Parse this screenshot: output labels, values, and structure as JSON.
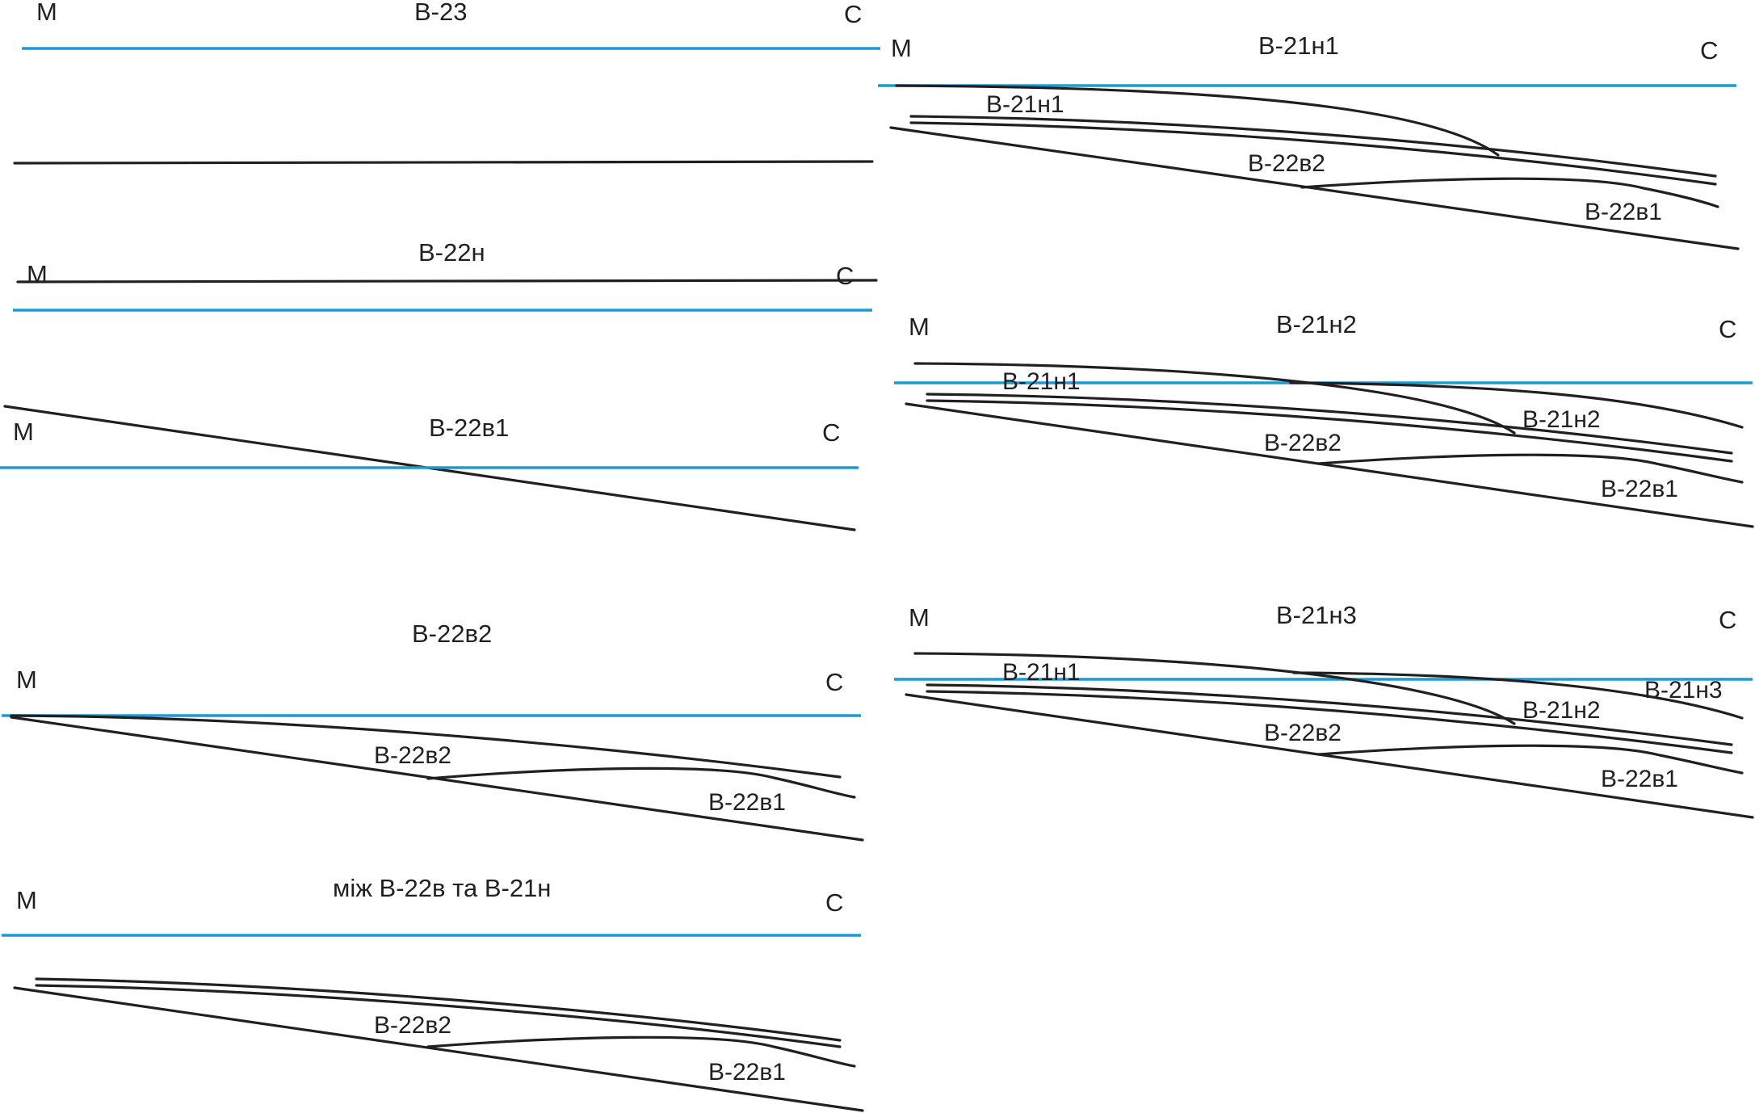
{
  "colors": {
    "line": "#231f20",
    "reference_line": "#1a9ad6",
    "background": "#ffffff"
  },
  "panels": [
    {
      "title": "В-23",
      "left_mark": "М",
      "right_mark": "С",
      "labels": []
    },
    {
      "title": "В-22н",
      "left_mark": "М",
      "right_mark": "С",
      "labels": []
    },
    {
      "title": "В-22в1",
      "left_mark": "М",
      "right_mark": "С",
      "labels": []
    },
    {
      "title": "В-22в2",
      "left_mark": "М",
      "right_mark": "С",
      "labels": [
        "В-22в2",
        "В-22в1"
      ]
    },
    {
      "title": "між В-22в та В-21н",
      "left_mark": "М",
      "right_mark": "С",
      "labels": [
        "В-22в2",
        "В-22в1"
      ]
    },
    {
      "title": "В-21н1",
      "left_mark": "М",
      "right_mark": "С",
      "labels": [
        "В-21н1",
        "В-22в2",
        "В-22в1"
      ]
    },
    {
      "title": "В-21н2",
      "left_mark": "М",
      "right_mark": "С",
      "labels": [
        "В-21н1",
        "В-21н2",
        "В-22в2",
        "В-22в1"
      ]
    },
    {
      "title": "В-21н3",
      "left_mark": "М",
      "right_mark": "С",
      "labels": [
        "В-21н1",
        "В-21н3",
        "В-21н2",
        "В-22в2",
        "В-22в1"
      ]
    }
  ]
}
